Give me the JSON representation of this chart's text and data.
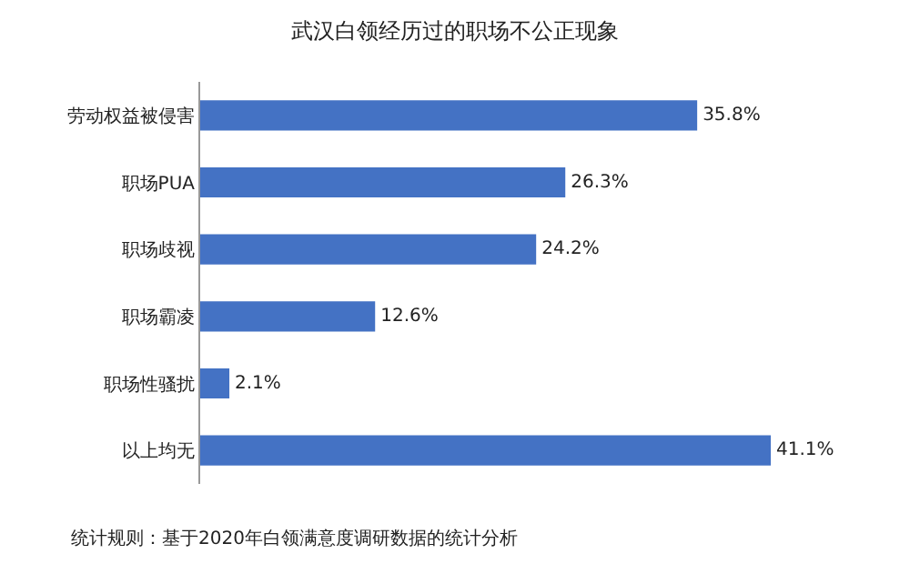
{
  "chart_data": {
    "type": "bar",
    "orientation": "horizontal",
    "title": "武汉白领经历过的职场不公正现象",
    "categories": [
      "劳动权益被侵害",
      "职场PUA",
      "职场歧视",
      "职场霸凌",
      "职场性骚扰",
      "以上均无"
    ],
    "values": [
      35.8,
      26.3,
      24.2,
      12.6,
      2.1,
      41.1
    ],
    "value_labels": [
      "35.8%",
      "26.3%",
      "24.2%",
      "12.6%",
      "2.1%",
      "41.1%"
    ],
    "color": "#4472c4",
    "annotations": [
      "统计规则：基于2020年白领满意度调研数据的统计分析"
    ]
  }
}
